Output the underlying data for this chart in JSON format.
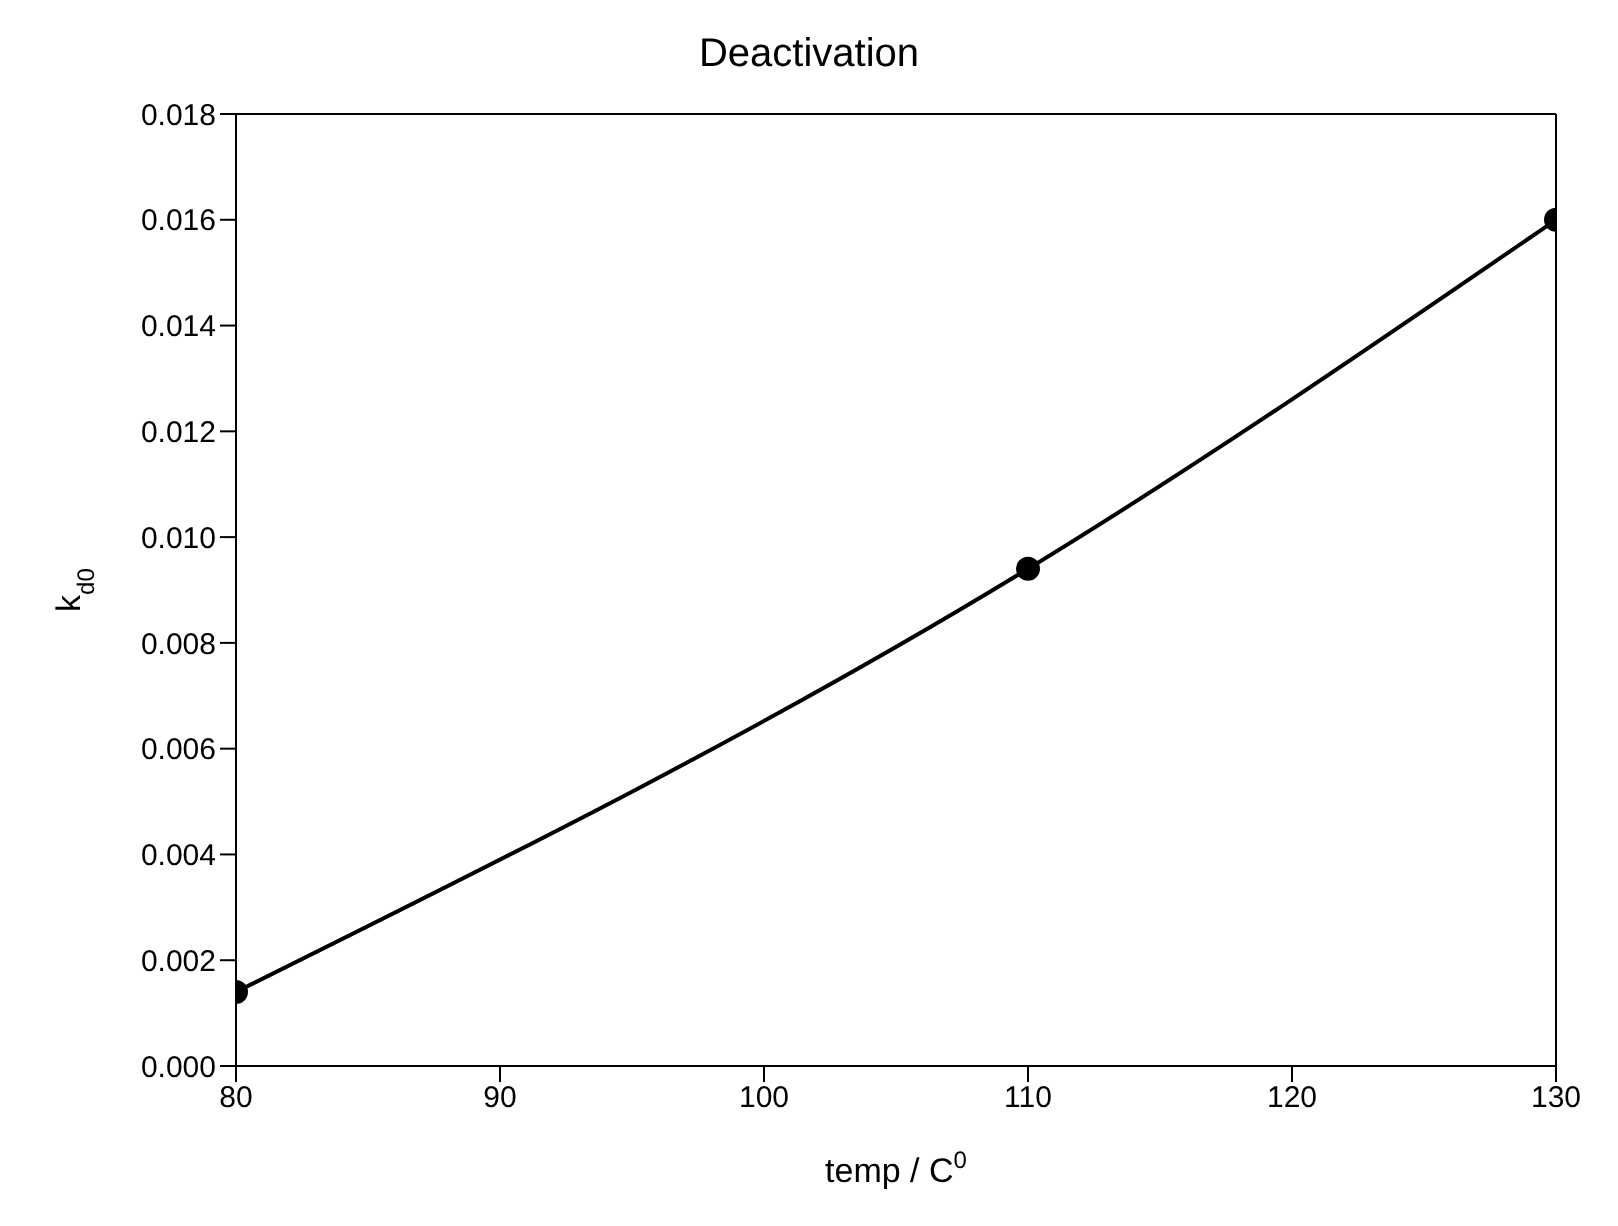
{
  "chart_data": {
    "type": "line",
    "title": "Deactivation",
    "xlabel": "temp / C$^{0}$",
    "ylabel": "k$_{d0}$",
    "x": [
      80,
      110,
      130
    ],
    "series": [
      {
        "color": "#000000",
        "values": [
          0.0014,
          0.0094,
          0.016
        ]
      }
    ],
    "xlim": [
      80,
      130
    ],
    "xticks": [
      80,
      90,
      100,
      110,
      120,
      130
    ],
    "ylim": [
      0,
      0.018
    ],
    "yticks": [
      {
        "value": 0,
        "label": "0.000"
      },
      {
        "value": 0.002,
        "label": "0.002"
      },
      {
        "value": 0.004,
        "label": "0.004"
      },
      {
        "value": 0.006,
        "label": "0.006"
      },
      {
        "value": 0.008,
        "label": "0.008"
      },
      {
        "value": 0.01,
        "label": "0.010"
      },
      {
        "value": 0.012,
        "label": "0.012"
      },
      {
        "value": 0.014,
        "label": "0.014"
      },
      {
        "value": 0.016,
        "label": "0.016"
      },
      {
        "value": 0.018,
        "label": "0.018"
      }
    ],
    "legend": false,
    "marker": "circle",
    "line_style": "solid"
  }
}
